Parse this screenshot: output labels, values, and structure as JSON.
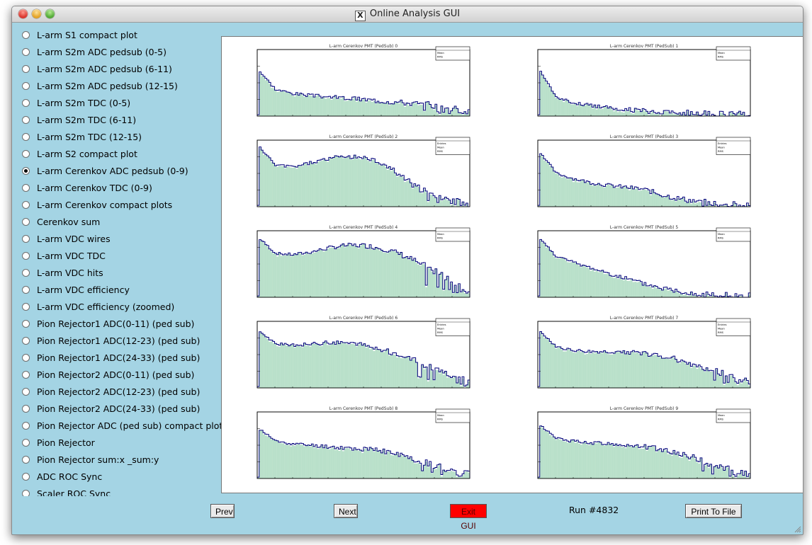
{
  "window": {
    "title": "Online Analysis GUI"
  },
  "sidebar": {
    "selected_index": 8,
    "items": [
      "L-arm S1 compact plot",
      "L-arm S2m ADC pedsub (0-5)",
      "L-arm S2m ADC pedsub (6-11)",
      "L-arm S2m ADC pedsub (12-15)",
      "L-arm S2m TDC (0-5)",
      "L-arm S2m TDC (6-11)",
      "L-arm S2m TDC (12-15)",
      "L-arm S2 compact plot",
      "L-arm Cerenkov ADC pedsub (0-9)",
      "L-arm Cerenkov TDC (0-9)",
      "L-arm Cerenkov compact plots",
      "Cerenkov sum",
      "L-arm VDC wires",
      "L-arm VDC TDC",
      "L-arm VDC hits",
      "L-arm VDC efficiency",
      "L-arm VDC efficiency (zoomed)",
      "Pion Rejector1 ADC(0-11) (ped sub)",
      "Pion Rejector1 ADC(12-23) (ped sub)",
      "Pion Rejector1 ADC(24-33) (ped sub)",
      "Pion Rejector2 ADC(0-11) (ped sub)",
      "Pion Rejector2 ADC(12-23) (ped sub)",
      "Pion Rejector2 ADC(24-33) (ped sub)",
      "Pion Rejector ADC (ped sub) compact plot",
      "Pion Rejector",
      "Pion Rejector sum:x _sum:y",
      "ADC ROC Sync",
      "Scaler ROC Sync"
    ]
  },
  "buttons": {
    "prev": "Prev",
    "next": "Next",
    "exit": "Exit GUI",
    "print": "Print To File"
  },
  "status": {
    "run": "Run #4832"
  },
  "colors": {
    "window_bg": "#a4d4e4",
    "histogram_line": "#00007a",
    "histogram_fill": "#7fc79e",
    "exit_button": "#ff0000"
  },
  "chart_data": [
    {
      "type": "area",
      "title": "L-arm Cerenkov PMT (PedSub) 0",
      "stats_labels": [
        "Mean",
        "RMS"
      ],
      "shape": [
        0.7,
        0.4,
        0.34,
        0.31,
        0.29,
        0.27,
        0.25,
        0.23,
        0.21,
        0.19,
        0.16,
        0.12,
        0.07
      ]
    },
    {
      "type": "area",
      "title": "L-arm Cerenkov PMT (PedSub) 1",
      "stats_labels": [
        "Mean",
        "RMS"
      ],
      "shape": [
        0.72,
        0.28,
        0.2,
        0.16,
        0.13,
        0.1,
        0.08,
        0.06,
        0.05,
        0.04,
        0.03,
        0.02,
        0.02
      ]
    },
    {
      "type": "area",
      "title": "L-arm Cerenkov PMT (PedSub) 2",
      "stats_labels": [
        "Entries",
        "Mean",
        "RMS"
      ],
      "shape": [
        0.92,
        0.62,
        0.6,
        0.66,
        0.72,
        0.76,
        0.74,
        0.66,
        0.5,
        0.3,
        0.16,
        0.09,
        0.04
      ]
    },
    {
      "type": "area",
      "title": "L-arm Cerenkov PMT (PedSub) 3",
      "stats_labels": [
        "Entries",
        "Mean",
        "RMS"
      ],
      "shape": [
        0.85,
        0.5,
        0.42,
        0.36,
        0.32,
        0.29,
        0.26,
        0.18,
        0.12,
        0.08,
        0.05,
        0.03,
        0.02
      ]
    },
    {
      "type": "area",
      "title": "L-arm Cerenkov PMT (PedSub) 4",
      "stats_labels": [
        "Mean",
        "RMS"
      ],
      "shape": [
        0.9,
        0.66,
        0.64,
        0.68,
        0.74,
        0.78,
        0.78,
        0.74,
        0.66,
        0.54,
        0.4,
        0.24,
        0.1
      ]
    },
    {
      "type": "area",
      "title": "L-arm Cerenkov PMT (PedSub) 5",
      "stats_labels": [
        "Mean",
        "RMS"
      ],
      "shape": [
        0.9,
        0.62,
        0.52,
        0.44,
        0.36,
        0.28,
        0.2,
        0.14,
        0.09,
        0.06,
        0.04,
        0.02,
        0.01
      ]
    },
    {
      "type": "area",
      "title": "L-arm Cerenkov PMT (PedSub) 6",
      "stats_labels": [
        "Entries",
        "Mean",
        "RMS"
      ],
      "shape": [
        0.86,
        0.66,
        0.64,
        0.66,
        0.68,
        0.68,
        0.64,
        0.58,
        0.5,
        0.4,
        0.3,
        0.2,
        0.1
      ]
    },
    {
      "type": "area",
      "title": "L-arm Cerenkov PMT (PedSub) 7",
      "stats_labels": [
        "Entries",
        "Mean",
        "RMS"
      ],
      "shape": [
        0.86,
        0.62,
        0.56,
        0.54,
        0.54,
        0.54,
        0.52,
        0.48,
        0.42,
        0.34,
        0.26,
        0.16,
        0.08
      ]
    },
    {
      "type": "area",
      "title": "L-arm Cerenkov PMT (PedSub) 8",
      "stats_labels": [
        "Mean",
        "RMS"
      ],
      "shape": [
        0.76,
        0.56,
        0.52,
        0.5,
        0.48,
        0.46,
        0.44,
        0.42,
        0.36,
        0.28,
        0.2,
        0.12,
        0.06
      ]
    },
    {
      "type": "area",
      "title": "L-arm Cerenkov PMT (PedSub) 9",
      "stats_labels": [
        "Mean",
        "RMS"
      ],
      "shape": [
        0.82,
        0.6,
        0.56,
        0.54,
        0.52,
        0.5,
        0.48,
        0.44,
        0.38,
        0.3,
        0.2,
        0.12,
        0.06
      ]
    }
  ]
}
